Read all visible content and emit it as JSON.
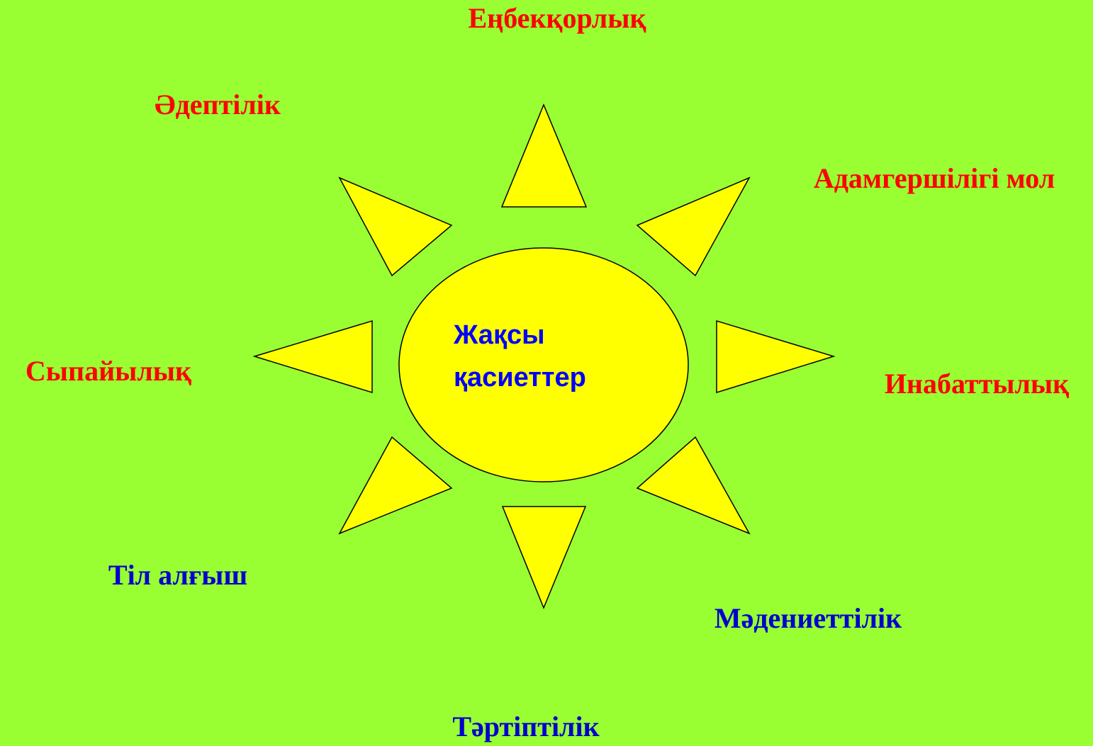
{
  "center": {
    "lines": [
      "Жақсы",
      "қасиеттер"
    ]
  },
  "nodes": [
    {
      "label": "Еңбекқорлық"
    },
    {
      "label": "Әдептілік"
    },
    {
      "label": "Адамгершілігі мол"
    },
    {
      "label": "Сыпайылық"
    },
    {
      "label": "Инабаттылық"
    },
    {
      "label": "Тіл алғыш"
    },
    {
      "label": "Мәдениеттілік"
    },
    {
      "label": "Тәртіптілік"
    }
  ]
}
